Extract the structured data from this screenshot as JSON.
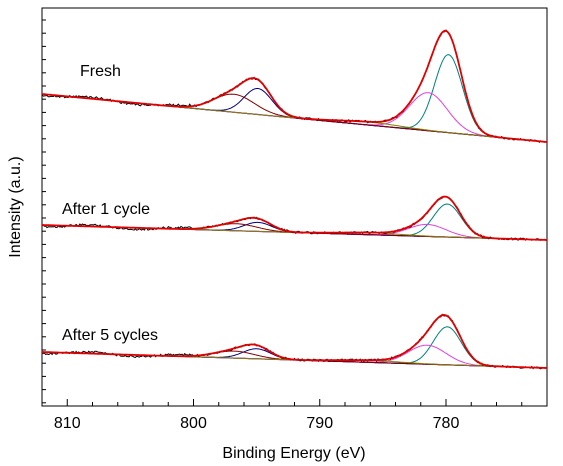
{
  "chart_data": {
    "type": "line",
    "title": "",
    "xlabel": "Binding Energy (eV)",
    "ylabel": "Intensity (a.u.)",
    "xlim": [
      812,
      772
    ],
    "x_reversed": true,
    "y_ticks_labeled": false,
    "grid": false,
    "x_ticks": [
      810,
      800,
      790,
      780
    ],
    "x_tick_labels": [
      "810",
      "800",
      "790",
      "780"
    ],
    "series_colors": {
      "raw_data": "#000000",
      "envelope": "#e00000",
      "background": "#c000c0",
      "peak_2p3_main": "#008080",
      "peak_2p3_satellite": "#e040e0",
      "peak_2p1_main": "#000080",
      "peak_2p1_satellite": "#800000",
      "shakeup_satellite": "#808000"
    },
    "panels": [
      {
        "label": "Fresh",
        "baseline_left": 0.56,
        "baseline_right": 0.0,
        "peaks": [
          {
            "center": 779.8,
            "height": 0.78,
            "width": 1.1,
            "color": "#008080"
          },
          {
            "center": 781.4,
            "height": 0.38,
            "width": 1.5,
            "color": "#e040e0"
          },
          {
            "center": 794.9,
            "height": 0.26,
            "width": 1.1,
            "color": "#000080"
          },
          {
            "center": 796.8,
            "height": 0.18,
            "width": 1.6,
            "color": "#800000"
          },
          {
            "center": 786.0,
            "height": 0.03,
            "width": 2.5,
            "color": "#808000"
          }
        ]
      },
      {
        "label": "After  1 cycle",
        "baseline_left": 0.14,
        "baseline_right": 0.0,
        "peaks": [
          {
            "center": 779.9,
            "height": 0.33,
            "width": 1.1,
            "color": "#008080"
          },
          {
            "center": 781.5,
            "height": 0.12,
            "width": 1.5,
            "color": "#e040e0"
          },
          {
            "center": 794.9,
            "height": 0.09,
            "width": 1.1,
            "color": "#000080"
          },
          {
            "center": 796.6,
            "height": 0.07,
            "width": 1.6,
            "color": "#800000"
          },
          {
            "center": 786.0,
            "height": 0.02,
            "width": 2.5,
            "color": "#808000"
          }
        ]
      },
      {
        "label": "After  5 cycles",
        "baseline_left": 0.14,
        "baseline_right": 0.0,
        "peaks": [
          {
            "center": 779.9,
            "height": 0.38,
            "width": 1.1,
            "color": "#008080"
          },
          {
            "center": 781.5,
            "height": 0.19,
            "width": 1.5,
            "color": "#e040e0"
          },
          {
            "center": 795.0,
            "height": 0.1,
            "width": 1.1,
            "color": "#000080"
          },
          {
            "center": 796.8,
            "height": 0.07,
            "width": 1.6,
            "color": "#800000"
          },
          {
            "center": 786.0,
            "height": 0.02,
            "width": 2.5,
            "color": "#808000"
          }
        ]
      }
    ]
  }
}
